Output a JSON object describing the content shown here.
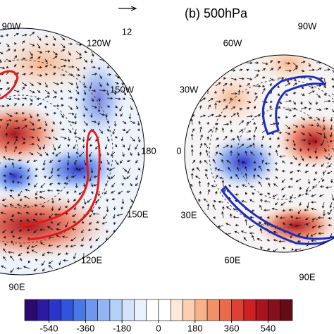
{
  "title": "(b) 500hPa",
  "reference_vector": {
    "label": "12"
  },
  "left_map": {
    "lon_labels": [
      "90W",
      "120W",
      "150W",
      "180",
      "150E",
      "120E",
      "90E"
    ]
  },
  "right_map": {
    "lon_labels": [
      "90W",
      "60W",
      "30W",
      "0",
      "30E",
      "60E",
      "90E"
    ]
  },
  "colorbar": {
    "lim": [
      -660,
      660
    ],
    "ticks": [
      -540,
      -360,
      -180,
      0,
      180,
      360,
      540
    ],
    "colors": [
      "#2a0a6e",
      "#2d1aa3",
      "#2b35c9",
      "#2f55dc",
      "#4a78e6",
      "#6e97ee",
      "#93b5f3",
      "#b6cff7",
      "#d4e3fa",
      "#eaf1fc",
      "#ffffff",
      "#ffffff",
      "#fde9d9",
      "#fbd0b0",
      "#f8b28a",
      "#f29168",
      "#ea6b4c",
      "#df4035",
      "#cc2026",
      "#a8141e",
      "#86101c",
      "#650b18"
    ]
  }
}
